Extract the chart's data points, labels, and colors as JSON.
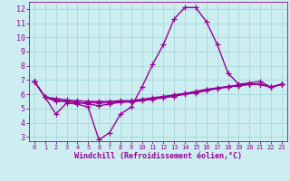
{
  "xlabel": "Windchill (Refroidissement éolien,°C)",
  "xlim": [
    -0.5,
    23.5
  ],
  "ylim": [
    2.7,
    12.5
  ],
  "yticks": [
    3,
    4,
    5,
    6,
    7,
    8,
    9,
    10,
    11,
    12
  ],
  "xticks": [
    0,
    1,
    2,
    3,
    4,
    5,
    6,
    7,
    8,
    9,
    10,
    11,
    12,
    13,
    14,
    15,
    16,
    17,
    18,
    19,
    20,
    21,
    22,
    23
  ],
  "background_color": "#cceef0",
  "grid_color": "#aad8dc",
  "line_color": "#990099",
  "line_width": 1.0,
  "marker": "+",
  "marker_size": 4,
  "marker_edge_width": 0.9,
  "series": [
    [
      6.9,
      5.8,
      4.6,
      5.4,
      5.3,
      5.1,
      2.8,
      3.3,
      4.6,
      5.1,
      6.5,
      8.1,
      9.5,
      11.3,
      12.1,
      12.1,
      11.1,
      9.5,
      7.5,
      6.7,
      6.8,
      6.9,
      6.5,
      6.7
    ],
    [
      6.9,
      5.8,
      5.5,
      5.5,
      5.4,
      5.4,
      5.4,
      5.4,
      5.5,
      5.5,
      5.6,
      5.7,
      5.8,
      5.95,
      6.05,
      6.15,
      6.3,
      6.4,
      6.55,
      6.6,
      6.7,
      6.7,
      6.5,
      6.7
    ],
    [
      6.9,
      5.8,
      5.7,
      5.6,
      5.55,
      5.5,
      5.5,
      5.5,
      5.55,
      5.55,
      5.65,
      5.75,
      5.85,
      5.95,
      6.05,
      6.2,
      6.35,
      6.45,
      6.55,
      6.65,
      6.7,
      6.7,
      6.5,
      6.7
    ],
    [
      6.9,
      5.8,
      5.6,
      5.5,
      5.45,
      5.3,
      5.2,
      5.3,
      5.45,
      5.45,
      5.55,
      5.65,
      5.75,
      5.85,
      6.0,
      6.1,
      6.25,
      6.4,
      6.5,
      6.6,
      6.7,
      6.7,
      6.5,
      6.7
    ]
  ]
}
